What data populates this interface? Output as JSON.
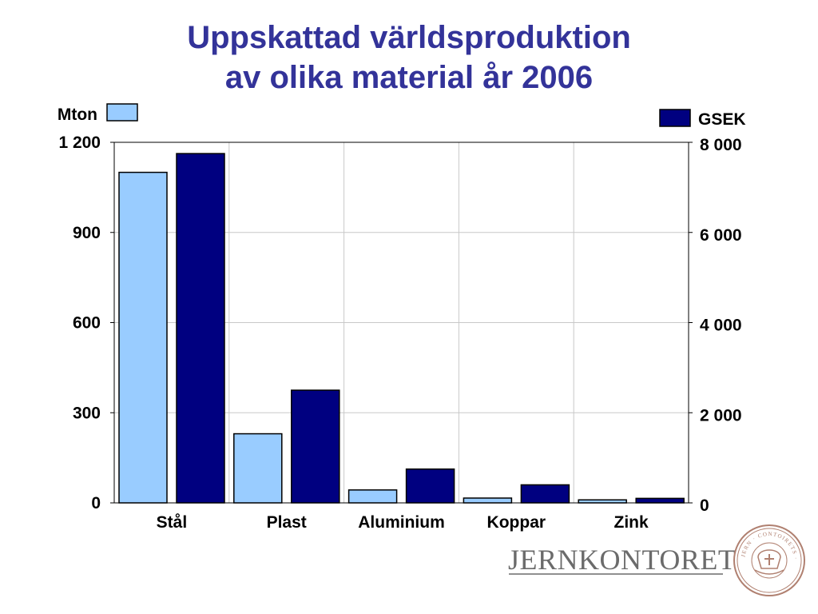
{
  "title": {
    "line1": "Uppskattad världsproduktion",
    "line2": "av olika material år 2006"
  },
  "colors": {
    "title": "#333399",
    "series_mton": "#99ccff",
    "series_gsek": "#000080",
    "grid": "#c8c8c8",
    "logo": "#6b6b6b",
    "seal": "#b08070"
  },
  "logo": {
    "text": "JERNKONTORET",
    "seal_text": "JERN · CONTOIRETS · SIGILL"
  },
  "chart_data": {
    "type": "bar",
    "categories": [
      "Stål",
      "Plast",
      "Aluminium",
      "Koppar",
      "Zink"
    ],
    "series": [
      {
        "name": "Mton",
        "axis": "left",
        "values": [
          1100,
          230,
          43,
          16,
          10
        ]
      },
      {
        "name": "GSEK",
        "axis": "right",
        "values": [
          7750,
          2500,
          750,
          400,
          100
        ]
      }
    ],
    "y_left": {
      "label": "Mton",
      "lim": [
        0,
        1200
      ],
      "ticks": [
        0,
        300,
        600,
        900,
        1200
      ],
      "tick_labels": [
        "0",
        "300",
        "600",
        "900",
        "1 200"
      ]
    },
    "y_right": {
      "label": "GSEK",
      "lim": [
        0,
        8000
      ],
      "ticks": [
        0,
        2000,
        4000,
        6000,
        8000
      ],
      "tick_labels": [
        "0",
        "2 000",
        "4 000",
        "6 000",
        "8 000"
      ]
    },
    "grid": true,
    "legend": [
      "Mton: top-left",
      "GSEK: top-right"
    ]
  }
}
